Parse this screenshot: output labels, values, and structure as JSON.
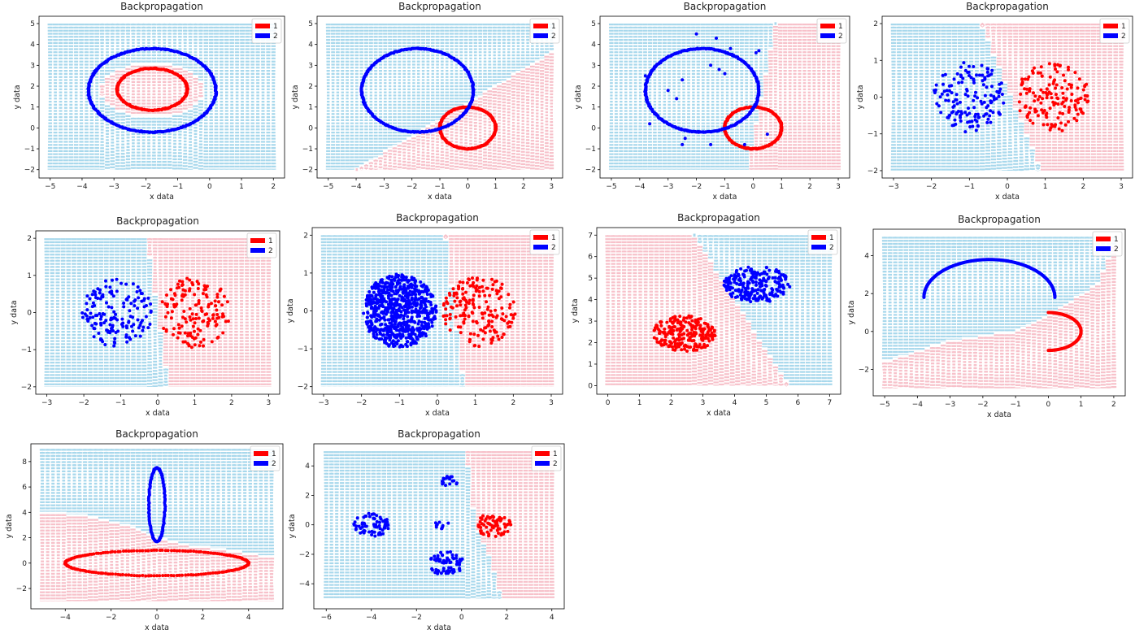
{
  "chart_data": [
    {
      "id": "c1",
      "type": "scatter",
      "title": "Backpropagation",
      "xlabel": "x data",
      "ylabel": "y data",
      "xlim": [
        -5.35,
        2.35
      ],
      "ylim": [
        -2.4,
        5.35
      ],
      "xticks": [
        -5,
        -4,
        -3,
        -2,
        -1,
        0,
        1,
        2
      ],
      "yticks": [
        -2,
        -1,
        0,
        1,
        2,
        3,
        4,
        5
      ],
      "legend": {
        "position": "top-right",
        "entries": [
          {
            "label": "1",
            "color": "#ff0000"
          },
          {
            "label": "2",
            "color": "#0000ff"
          }
        ]
      },
      "background": {
        "x_range": [
          -5,
          2
        ],
        "y_range": [
          -2,
          5
        ],
        "cols": 44,
        "rows": 60,
        "boundary": {
          "kind": "ellipse",
          "cx": -1.8,
          "cy": 1.8,
          "rx": 1.6,
          "ry": 1.3,
          "inside": "red"
        }
      },
      "series": [
        {
          "name": "1",
          "color": "#ff0000",
          "kind": "ellipse",
          "cx": -1.8,
          "cy": 1.85,
          "rx": 1.1,
          "ry": 1.0,
          "n": 220
        },
        {
          "name": "2",
          "color": "#0000ff",
          "kind": "ellipse",
          "cx": -1.8,
          "cy": 1.8,
          "rx": 2.0,
          "ry": 2.0,
          "n": 340
        }
      ]
    },
    {
      "id": "c2",
      "type": "scatter",
      "title": "Backpropagation",
      "xlabel": "x data",
      "ylabel": "y data",
      "xlim": [
        -5.4,
        3.4
      ],
      "ylim": [
        -2.4,
        5.35
      ],
      "xticks": [
        -5,
        -4,
        -3,
        -2,
        -1,
        0,
        1,
        2,
        3
      ],
      "yticks": [
        -2,
        -1,
        0,
        1,
        2,
        3,
        4,
        5
      ],
      "legend": {
        "position": "top-right",
        "entries": [
          {
            "label": "1",
            "color": "#ff0000"
          },
          {
            "label": "2",
            "color": "#0000ff"
          }
        ]
      },
      "background": {
        "x_range": [
          -5,
          3
        ],
        "y_range": [
          -2,
          5
        ],
        "cols": 48,
        "rows": 60,
        "boundary": {
          "kind": "line",
          "x1": -4,
          "y1": -2,
          "x2": 3,
          "y2": 3.6,
          "below": "red"
        }
      },
      "series": [
        {
          "name": "1",
          "color": "#ff0000",
          "kind": "ellipse",
          "cx": 0,
          "cy": 0,
          "rx": 1.0,
          "ry": 1.0,
          "n": 220
        },
        {
          "name": "2",
          "color": "#0000ff",
          "kind": "ellipse",
          "cx": -1.8,
          "cy": 1.8,
          "rx": 2.0,
          "ry": 2.0,
          "n": 340
        }
      ]
    },
    {
      "id": "c3",
      "type": "scatter",
      "title": "Backpropagation",
      "xlabel": "x data",
      "ylabel": "y data",
      "xlim": [
        -5.4,
        3.4
      ],
      "ylim": [
        -2.4,
        5.35
      ],
      "xticks": [
        -5,
        -4,
        -3,
        -2,
        -1,
        0,
        1,
        2,
        3
      ],
      "yticks": [
        -2,
        -1,
        0,
        1,
        2,
        3,
        4,
        5
      ],
      "legend": {
        "position": "top-right",
        "entries": [
          {
            "label": "1",
            "color": "#ff0000"
          },
          {
            "label": "2",
            "color": "#0000ff"
          }
        ]
      },
      "background": {
        "x_range": [
          -5,
          3
        ],
        "y_range": [
          -2,
          5
        ],
        "cols": 48,
        "rows": 60,
        "boundary": {
          "kind": "line",
          "x1": -0.2,
          "y1": -2,
          "x2": 0.8,
          "y2": 5,
          "right": "red"
        }
      },
      "series": [
        {
          "name": "1",
          "color": "#ff0000",
          "kind": "ellipse",
          "cx": 0,
          "cy": 0,
          "rx": 1.0,
          "ry": 1.0,
          "n": 220
        },
        {
          "name": "2",
          "color": "#0000ff",
          "kind": "ellipse",
          "cx": -1.8,
          "cy": 1.8,
          "rx": 2.0,
          "ry": 2.0,
          "n": 340
        },
        {
          "name": "2",
          "color": "#0000ff",
          "kind": "points",
          "points": [
            [
              -3.8,
              2.5
            ],
            [
              -3.65,
              0.2
            ],
            [
              -3.0,
              1.8
            ],
            [
              -2.5,
              2.3
            ],
            [
              -2.0,
              4.5
            ],
            [
              -1.5,
              3.0
            ],
            [
              -1.3,
              4.3
            ],
            [
              -1.2,
              2.8
            ],
            [
              -1.0,
              2.6
            ],
            [
              -0.8,
              3.8
            ],
            [
              0.1,
              3.6
            ],
            [
              0.2,
              3.7
            ],
            [
              -2.4,
              -0.5
            ],
            [
              -2.5,
              -0.8
            ],
            [
              -1.5,
              -0.8
            ],
            [
              -0.3,
              -0.8
            ],
            [
              0.5,
              -0.3
            ],
            [
              -2.7,
              1.4
            ]
          ]
        }
      ]
    },
    {
      "id": "c4",
      "type": "scatter",
      "title": "Backpropagation",
      "xlabel": "x data",
      "ylabel": "y data",
      "xlim": [
        -3.3,
        3.3
      ],
      "ylim": [
        -2.2,
        2.2
      ],
      "xticks": [
        -3,
        -2,
        -1,
        0,
        1,
        2,
        3
      ],
      "yticks": [
        -2,
        -1,
        0,
        1,
        2
      ],
      "legend": {
        "position": "top-right",
        "entries": [
          {
            "label": "1",
            "color": "#ff0000"
          },
          {
            "label": "2",
            "color": "#0000ff"
          }
        ]
      },
      "background": {
        "x_range": [
          -3,
          3
        ],
        "y_range": [
          -2,
          2
        ],
        "cols": 42,
        "rows": 50,
        "boundary": {
          "kind": "line",
          "x1": 0.9,
          "y1": -2,
          "x2": -0.7,
          "y2": 2,
          "right": "red"
        }
      },
      "series": [
        {
          "name": "1",
          "color": "#ff0000",
          "kind": "disc",
          "cx": 1.2,
          "cy": 0,
          "r": 0.95,
          "n": 150
        },
        {
          "name": "2",
          "color": "#0000ff",
          "kind": "disc",
          "cx": -1.0,
          "cy": 0,
          "r": 0.95,
          "n": 150
        }
      ]
    },
    {
      "id": "c5",
      "type": "scatter",
      "title": "Backpropagation",
      "xlabel": "x data",
      "ylabel": "y data",
      "xlim": [
        -3.3,
        3.3
      ],
      "ylim": [
        -2.2,
        2.2
      ],
      "xticks": [
        -3,
        -2,
        -1,
        0,
        1,
        2,
        3
      ],
      "yticks": [
        -2,
        -1,
        0,
        1,
        2
      ],
      "legend": {
        "position": "top-right",
        "entries": [
          {
            "label": "1",
            "color": "#ff0000"
          },
          {
            "label": "2",
            "color": "#0000ff"
          }
        ]
      },
      "background": {
        "x_range": [
          -3,
          3
        ],
        "y_range": [
          -2,
          2
        ],
        "cols": 42,
        "rows": 50,
        "boundary": {
          "kind": "line",
          "x1": 0.3,
          "y1": -2,
          "x2": -0.3,
          "y2": 2,
          "right": "red"
        }
      },
      "series": [
        {
          "name": "1",
          "color": "#ff0000",
          "kind": "disc",
          "cx": 1.0,
          "cy": 0,
          "r": 0.95,
          "n": 150
        },
        {
          "name": "2",
          "color": "#0000ff",
          "kind": "disc",
          "cx": -1.1,
          "cy": 0,
          "r": 0.95,
          "n": 150
        }
      ]
    },
    {
      "id": "c6",
      "type": "scatter",
      "title": "Backpropagation",
      "xlabel": "x data",
      "ylabel": "y data",
      "xlim": [
        -3.3,
        3.3
      ],
      "ylim": [
        -2.2,
        2.2
      ],
      "xticks": [
        -3,
        -2,
        -1,
        0,
        1,
        2,
        3
      ],
      "yticks": [
        -2,
        -1,
        0,
        1,
        2
      ],
      "legend": {
        "position": "top-right",
        "entries": [
          {
            "label": "1",
            "color": "#ff0000"
          },
          {
            "label": "2",
            "color": "#0000ff"
          }
        ]
      },
      "background": {
        "x_range": [
          -3,
          3
        ],
        "y_range": [
          -2,
          2
        ],
        "cols": 42,
        "rows": 50,
        "boundary": {
          "kind": "line",
          "x1": 0.7,
          "y1": -2,
          "x2": 0.2,
          "y2": 2,
          "right": "red"
        }
      },
      "series": [
        {
          "name": "1",
          "color": "#ff0000",
          "kind": "disc",
          "cx": 1.1,
          "cy": 0,
          "r": 0.95,
          "n": 180
        },
        {
          "name": "2",
          "color": "#0000ff",
          "kind": "disc",
          "cx": -1.0,
          "cy": 0,
          "r": 0.97,
          "n": 700
        }
      ]
    },
    {
      "id": "c7",
      "type": "scatter",
      "title": "Backpropagation",
      "xlabel": "x data",
      "ylabel": "y data",
      "xlim": [
        -0.35,
        7.35
      ],
      "ylim": [
        -0.4,
        7.35
      ],
      "xticks": [
        0,
        1,
        2,
        3,
        4,
        5,
        6,
        7
      ],
      "yticks": [
        0,
        1,
        2,
        3,
        4,
        5,
        6,
        7
      ],
      "legend": {
        "position": "top-right",
        "entries": [
          {
            "label": "1",
            "color": "#ff0000"
          },
          {
            "label": "2",
            "color": "#0000ff"
          }
        ]
      },
      "background": {
        "x_range": [
          0,
          7
        ],
        "y_range": [
          0,
          7
        ],
        "cols": 42,
        "rows": 56,
        "boundary": {
          "kind": "line",
          "x1": 2.7,
          "y1": 7,
          "x2": 5.7,
          "y2": 0,
          "left": "red"
        }
      },
      "series": [
        {
          "name": "1",
          "color": "#ff0000",
          "kind": "ellipsefill",
          "cx": 2.4,
          "cy": 2.4,
          "rx": 1.0,
          "ry": 0.85,
          "n": 230
        },
        {
          "name": "2",
          "color": "#0000ff",
          "kind": "ellipsefill",
          "cx": 4.7,
          "cy": 4.7,
          "rx": 1.05,
          "ry": 0.85,
          "n": 230
        }
      ]
    },
    {
      "id": "c8",
      "type": "scatter",
      "title": "Backpropagation",
      "xlabel": "x data",
      "ylabel": "y data",
      "xlim": [
        -5.35,
        2.35
      ],
      "ylim": [
        -3.4,
        5.4
      ],
      "xticks": [
        -5,
        -4,
        -3,
        -2,
        -1,
        0,
        1,
        2
      ],
      "yticks": [
        -2,
        0,
        2,
        4
      ],
      "legend": {
        "position": "top-right",
        "entries": [
          {
            "label": "1",
            "color": "#ff0000"
          },
          {
            "label": "2",
            "color": "#0000ff"
          }
        ]
      },
      "background": {
        "x_range": [
          -5,
          2
        ],
        "y_range": [
          -3,
          5
        ],
        "cols": 44,
        "rows": 60,
        "boundary": {
          "kind": "poly",
          "pts": [
            [
              -5,
              -1.6
            ],
            [
              -3,
              -0.5
            ],
            [
              -1,
              0
            ],
            [
              0,
              0.8
            ],
            [
              1.5,
              2.5
            ],
            [
              2,
              4.5
            ]
          ],
          "below": "red"
        }
      },
      "series": [
        {
          "name": "1",
          "color": "#ff0000",
          "kind": "arc",
          "cx": 0,
          "cy": 0,
          "rx": 1.0,
          "ry": 1.0,
          "a0": -90,
          "a1": 90,
          "n": 120
        },
        {
          "name": "2",
          "color": "#0000ff",
          "kind": "arc",
          "cx": -1.8,
          "cy": 1.8,
          "rx": 2.0,
          "ry": 2.0,
          "a0": 0,
          "a1": 180,
          "n": 220
        }
      ]
    },
    {
      "id": "c9",
      "type": "scatter",
      "title": "Backpropagation",
      "xlabel": "x data",
      "ylabel": "y data",
      "xlim": [
        -5.5,
        5.5
      ],
      "ylim": [
        -3.6,
        9.4
      ],
      "xticks": [
        -4,
        -2,
        0,
        2,
        4
      ],
      "yticks": [
        -2,
        0,
        2,
        4,
        6,
        8
      ],
      "legend": {
        "position": "top-right",
        "entries": [
          {
            "label": "1",
            "color": "#ff0000"
          },
          {
            "label": "2",
            "color": "#0000ff"
          }
        ]
      },
      "background": {
        "x_range": [
          -5,
          5
        ],
        "y_range": [
          -3,
          9
        ],
        "cols": 44,
        "rows": 64,
        "boundary": {
          "kind": "poly",
          "pts": [
            [
              -5,
              4.0
            ],
            [
              -3,
              3.7
            ],
            [
              -1,
              2.8
            ],
            [
              0,
              2.0
            ],
            [
              1,
              1.5
            ],
            [
              3,
              1.0
            ],
            [
              5,
              0.5
            ]
          ],
          "below": "red"
        }
      },
      "series": [
        {
          "name": "1",
          "color": "#ff0000",
          "kind": "ellipse",
          "cx": 0,
          "cy": 0,
          "rx": 4.0,
          "ry": 1.0,
          "n": 200
        },
        {
          "name": "2",
          "color": "#0000ff",
          "kind": "ellipse",
          "cx": 0,
          "cy": 4.6,
          "rx": 0.35,
          "ry": 2.9,
          "n": 120
        }
      ]
    },
    {
      "id": "c10",
      "type": "scatter",
      "title": "Backpropagation",
      "xlabel": "x data",
      "ylabel": "y data",
      "xlim": [
        -6.55,
        4.55
      ],
      "ylim": [
        -5.7,
        5.5
      ],
      "xticks": [
        -6,
        -4,
        -2,
        0,
        2,
        4
      ],
      "yticks": [
        -4,
        -2,
        0,
        2,
        4
      ],
      "legend": {
        "position": "top-right",
        "entries": [
          {
            "label": "1",
            "color": "#ff0000"
          },
          {
            "label": "2",
            "color": "#0000ff"
          }
        ]
      },
      "background": {
        "x_range": [
          -6,
          4
        ],
        "y_range": [
          -5,
          5
        ],
        "cols": 44,
        "rows": 64,
        "boundary": {
          "kind": "poly",
          "pts": [
            [
              0.2,
              5
            ],
            [
              0.4,
              2.5
            ],
            [
              0.6,
              0
            ],
            [
              1.2,
              -2
            ],
            [
              1.8,
              -5
            ]
          ],
          "right": "red"
        }
      },
      "series": [
        {
          "name": "1",
          "color": "#ff0000",
          "kind": "ellipsefill",
          "cx": 1.4,
          "cy": 0,
          "rx": 0.8,
          "ry": 0.8,
          "n": 70
        },
        {
          "name": "2",
          "color": "#0000ff",
          "kind": "ellipsefill",
          "cx": -4.0,
          "cy": 0,
          "rx": 0.8,
          "ry": 0.8,
          "n": 70
        },
        {
          "name": "2",
          "color": "#0000ff",
          "kind": "ellipsefill",
          "cx": -0.7,
          "cy": -2.6,
          "rx": 0.8,
          "ry": 0.8,
          "n": 70
        },
        {
          "name": "2",
          "color": "#0000ff",
          "kind": "ellipsefill",
          "cx": -0.55,
          "cy": 3.0,
          "rx": 0.45,
          "ry": 0.35,
          "n": 18
        },
        {
          "name": "2",
          "color": "#0000ff",
          "kind": "ellipsefill",
          "cx": -0.9,
          "cy": 0,
          "rx": 0.35,
          "ry": 0.3,
          "n": 10
        }
      ]
    }
  ]
}
